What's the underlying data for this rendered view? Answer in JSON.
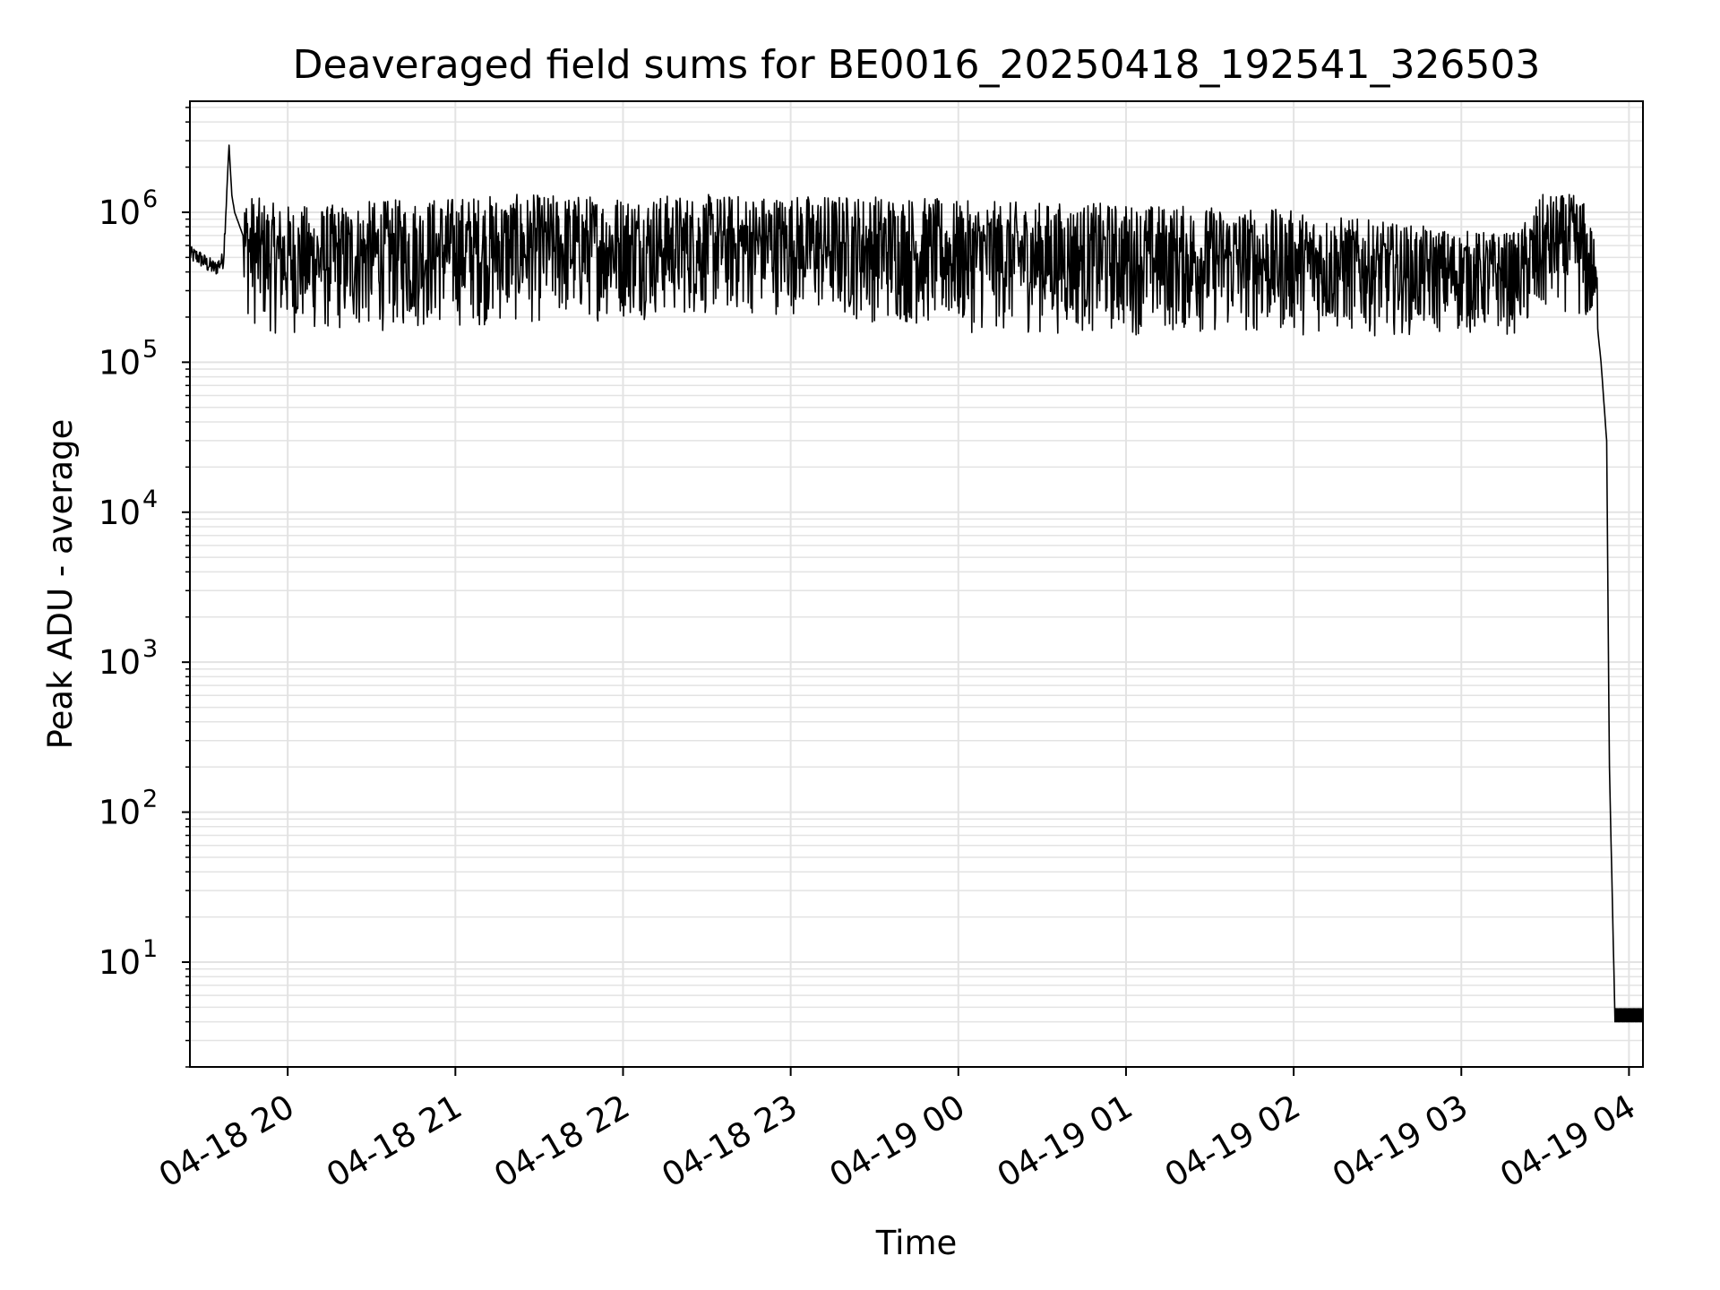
{
  "chart_data": {
    "type": "line",
    "title": "Deaveraged field sums for BE0016_20250418_192541_326503",
    "xlabel": "Time",
    "ylabel": "Peak ADU - average",
    "y_scale": "log",
    "ylim": [
      2,
      5500000
    ],
    "xlim": [
      "2025-04-18T19:25:00",
      "2025-04-19T04:05:00"
    ],
    "grid": true,
    "legend": "none",
    "line_color": "#000000",
    "grid_color": "#e3e3e3",
    "x_ticks": [
      {
        "label": "04-18 20",
        "value": "2025-04-18T20:00:00"
      },
      {
        "label": "04-18 21",
        "value": "2025-04-18T21:00:00"
      },
      {
        "label": "04-18 22",
        "value": "2025-04-18T22:00:00"
      },
      {
        "label": "04-18 23",
        "value": "2025-04-18T23:00:00"
      },
      {
        "label": "04-19 00",
        "value": "2025-04-19T00:00:00"
      },
      {
        "label": "04-19 01",
        "value": "2025-04-19T01:00:00"
      },
      {
        "label": "04-19 02",
        "value": "2025-04-19T02:00:00"
      },
      {
        "label": "04-19 03",
        "value": "2025-04-19T03:00:00"
      },
      {
        "label": "04-19 04",
        "value": "2025-04-19T04:00:00"
      }
    ],
    "y_ticks": [
      {
        "base": "10",
        "exp": "1",
        "value": 10
      },
      {
        "base": "10",
        "exp": "2",
        "value": 100
      },
      {
        "base": "10",
        "exp": "3",
        "value": 1000
      },
      {
        "base": "10",
        "exp": "4",
        "value": 10000
      },
      {
        "base": "10",
        "exp": "5",
        "value": 100000
      },
      {
        "base": "10",
        "exp": "6",
        "value": 1000000
      }
    ],
    "series": [
      {
        "x": [
          "2025-04-18T19:25:00",
          "2025-04-18T19:28:00",
          "2025-04-18T19:31:00",
          "2025-04-18T19:34:00",
          "2025-04-18T19:37:00",
          "2025-04-18T19:39:00",
          "2025-04-18T19:40:00",
          "2025-04-18T19:41:00",
          "2025-04-18T19:44:00",
          "2025-04-18T19:48:00",
          "2025-04-18T19:55:00",
          "2025-04-18T20:10:00",
          "2025-04-18T20:30:00",
          "2025-04-18T21:00:00",
          "2025-04-18T21:30:00",
          "2025-04-18T22:00:00",
          "2025-04-18T22:30:00",
          "2025-04-18T23:00:00",
          "2025-04-18T23:30:00",
          "2025-04-19T00:00:00",
          "2025-04-19T00:30:00",
          "2025-04-19T01:00:00",
          "2025-04-19T01:30:00",
          "2025-04-19T02:00:00",
          "2025-04-19T02:30:00",
          "2025-04-19T03:00:00",
          "2025-04-19T03:20:00",
          "2025-04-19T03:32:00",
          "2025-04-19T03:41:00",
          "2025-04-19T03:47:00",
          "2025-04-19T03:50:00",
          "2025-04-19T03:52:00",
          "2025-04-19T03:53:00",
          "2025-04-19T03:55:00",
          "2025-04-19T04:05:00"
        ],
        "values": [
          520000,
          500000,
          450000,
          420000,
          480000,
          2800000,
          1300000,
          1000000,
          700000,
          560000,
          500000,
          480000,
          520000,
          560000,
          590000,
          630000,
          660000,
          690000,
          600000,
          520000,
          510000,
          500000,
          480000,
          450000,
          380000,
          330000,
          320000,
          700000,
          720000,
          350000,
          100000,
          30000,
          200,
          4,
          4
        ],
        "fluctuation_range": {
          "low": 150000,
          "high": 1200000
        }
      }
    ]
  }
}
